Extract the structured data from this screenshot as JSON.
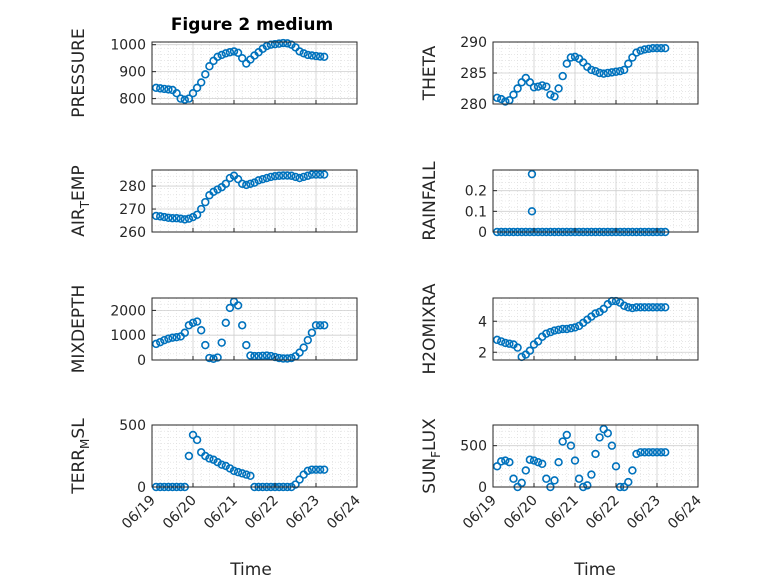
{
  "figure": {
    "title": "Figure 2 medium"
  },
  "chart_data": [
    {
      "type": "scatter",
      "ylabel": "PRESSURE",
      "ylim": [
        780,
        1010
      ],
      "yticks": [
        800,
        900,
        1000
      ],
      "x": [
        0.1,
        0.2,
        0.3,
        0.4,
        0.5,
        0.6,
        0.7,
        0.8,
        0.9,
        1.0,
        1.1,
        1.2,
        1.3,
        1.4,
        1.5,
        1.6,
        1.7,
        1.8,
        1.9,
        2.0,
        2.1,
        2.2,
        2.3,
        2.4,
        2.5,
        2.6,
        2.7,
        2.8,
        2.9,
        3.0,
        3.1,
        3.2,
        3.3,
        3.4,
        3.5,
        3.6,
        3.7,
        3.8,
        3.9,
        4.0,
        4.1,
        4.2
      ],
      "y": [
        840,
        838,
        836,
        834,
        832,
        820,
        800,
        796,
        800,
        820,
        840,
        860,
        890,
        920,
        940,
        955,
        962,
        968,
        972,
        975,
        970,
        950,
        930,
        945,
        960,
        972,
        985,
        995,
        1000,
        1002,
        1004,
        1006,
        1005,
        1000,
        990,
        975,
        968,
        962,
        960,
        958,
        956,
        955
      ]
    },
    {
      "type": "scatter",
      "ylabel": "THETA",
      "ylim": [
        280,
        290
      ],
      "yticks": [
        280,
        285,
        290
      ],
      "x": [
        0.1,
        0.2,
        0.3,
        0.4,
        0.5,
        0.6,
        0.7,
        0.8,
        0.9,
        1.0,
        1.1,
        1.2,
        1.3,
        1.4,
        1.5,
        1.6,
        1.7,
        1.8,
        1.9,
        2.0,
        2.1,
        2.2,
        2.3,
        2.4,
        2.5,
        2.6,
        2.7,
        2.8,
        2.9,
        3.0,
        3.1,
        3.2,
        3.3,
        3.4,
        3.5,
        3.6,
        3.7,
        3.8,
        3.9,
        4.0,
        4.1,
        4.2
      ],
      "y": [
        281,
        280.8,
        280.4,
        280.6,
        281.5,
        282.5,
        283.5,
        284.2,
        283.5,
        282.7,
        282.8,
        283,
        282.8,
        281.5,
        281.2,
        282.5,
        284.5,
        286.5,
        287.5,
        287.6,
        287.3,
        286.7,
        286,
        285.5,
        285.3,
        285,
        284.9,
        285,
        285.1,
        285.2,
        285.3,
        285.5,
        286.5,
        287.5,
        288.3,
        288.6,
        288.8,
        288.9,
        289,
        289,
        289,
        289
      ]
    },
    {
      "type": "scatter",
      "ylabel": "AIR_TEMP",
      "ylim": [
        260,
        287
      ],
      "yticks": [
        260,
        270,
        280
      ],
      "x": [
        0.1,
        0.2,
        0.3,
        0.4,
        0.5,
        0.6,
        0.7,
        0.8,
        0.9,
        1.0,
        1.1,
        1.2,
        1.3,
        1.4,
        1.5,
        1.6,
        1.7,
        1.8,
        1.9,
        2.0,
        2.1,
        2.2,
        2.3,
        2.4,
        2.5,
        2.6,
        2.7,
        2.8,
        2.9,
        3.0,
        3.1,
        3.2,
        3.3,
        3.4,
        3.5,
        3.6,
        3.7,
        3.8,
        3.9,
        4.0,
        4.1,
        4.2
      ],
      "y": [
        267,
        266.8,
        266.5,
        266.2,
        266,
        266,
        265.8,
        265.5,
        265.8,
        266.5,
        267.5,
        270,
        273,
        276,
        277.5,
        278.5,
        279.5,
        281,
        283.5,
        284.5,
        283,
        281,
        280.5,
        281,
        281.5,
        282.5,
        283,
        283.5,
        284,
        284.3,
        284.5,
        284.6,
        284.6,
        284.5,
        284,
        283.5,
        284,
        284.5,
        285,
        285,
        285,
        285
      ]
    },
    {
      "type": "scatter",
      "ylabel": "RAINFALL",
      "ylim": [
        0,
        0.3
      ],
      "yticks": [
        0,
        0.1,
        0.2
      ],
      "x": [
        0.1,
        0.2,
        0.3,
        0.4,
        0.5,
        0.6,
        0.7,
        0.8,
        0.9,
        1.0,
        1.1,
        1.2,
        1.3,
        1.4,
        1.5,
        1.6,
        1.7,
        1.8,
        1.9,
        2.0,
        2.1,
        2.2,
        2.3,
        2.4,
        2.5,
        2.6,
        2.7,
        2.8,
        2.9,
        3.0,
        3.1,
        3.2,
        3.3,
        3.4,
        3.5,
        3.6,
        3.7,
        3.8,
        3.9,
        4.0,
        4.1,
        4.2,
        0.95,
        0.95
      ],
      "y": [
        0,
        0,
        0,
        0,
        0,
        0,
        0,
        0,
        0,
        0,
        0,
        0,
        0,
        0,
        0,
        0,
        0,
        0,
        0,
        0,
        0,
        0,
        0,
        0,
        0,
        0,
        0,
        0,
        0,
        0,
        0,
        0,
        0,
        0,
        0,
        0,
        0,
        0,
        0,
        0,
        0,
        0,
        0.1,
        0.28
      ]
    },
    {
      "type": "scatter",
      "ylabel": "MIXDEPTH",
      "ylim": [
        0,
        2500
      ],
      "yticks": [
        0,
        1000,
        2000
      ],
      "x": [
        0.1,
        0.2,
        0.3,
        0.4,
        0.5,
        0.6,
        0.7,
        0.8,
        0.9,
        1.0,
        1.1,
        1.2,
        1.3,
        1.4,
        1.5,
        1.6,
        1.7,
        1.8,
        1.9,
        2.0,
        2.1,
        2.2,
        2.3,
        2.4,
        2.5,
        2.6,
        2.7,
        2.8,
        2.9,
        3.0,
        3.1,
        3.2,
        3.3,
        3.4,
        3.5,
        3.6,
        3.7,
        3.8,
        3.9,
        4.0,
        4.1,
        4.2
      ],
      "y": [
        650,
        720,
        800,
        860,
        900,
        920,
        950,
        1100,
        1400,
        1500,
        1550,
        1200,
        600,
        80,
        50,
        100,
        700,
        1500,
        2100,
        2350,
        2200,
        1400,
        600,
        180,
        160,
        160,
        170,
        180,
        160,
        120,
        80,
        60,
        60,
        80,
        150,
        300,
        500,
        800,
        1100,
        1400,
        1400,
        1400
      ]
    },
    {
      "type": "scatter",
      "ylabel": "H2OMIXRA",
      "ylim": [
        1.5,
        5.5
      ],
      "yticks": [
        2,
        4
      ],
      "x": [
        0.1,
        0.2,
        0.3,
        0.4,
        0.5,
        0.6,
        0.7,
        0.8,
        0.9,
        1.0,
        1.1,
        1.2,
        1.3,
        1.4,
        1.5,
        1.6,
        1.7,
        1.8,
        1.9,
        2.0,
        2.1,
        2.2,
        2.3,
        2.4,
        2.5,
        2.6,
        2.7,
        2.8,
        2.9,
        3.0,
        3.1,
        3.2,
        3.3,
        3.4,
        3.5,
        3.6,
        3.7,
        3.8,
        3.9,
        4.0,
        4.1,
        4.2
      ],
      "y": [
        2.8,
        2.7,
        2.6,
        2.55,
        2.5,
        2.3,
        1.7,
        1.85,
        2.1,
        2.5,
        2.7,
        3.0,
        3.2,
        3.3,
        3.4,
        3.45,
        3.5,
        3.5,
        3.55,
        3.6,
        3.7,
        3.9,
        4.1,
        4.3,
        4.5,
        4.6,
        4.8,
        5.1,
        5.3,
        5.3,
        5.2,
        5.0,
        4.9,
        4.85,
        4.9,
        4.9,
        4.9,
        4.9,
        4.9,
        4.9,
        4.9,
        4.9
      ]
    },
    {
      "type": "scatter",
      "ylabel": "TERR_MSL",
      "ylim": [
        0,
        500
      ],
      "yticks": [
        0,
        500
      ],
      "x": [
        0.1,
        0.2,
        0.3,
        0.4,
        0.5,
        0.6,
        0.7,
        0.8,
        0.9,
        1.0,
        1.1,
        1.2,
        1.3,
        1.4,
        1.5,
        1.6,
        1.7,
        1.8,
        1.9,
        2.0,
        2.1,
        2.2,
        2.3,
        2.4,
        2.5,
        2.6,
        2.7,
        2.8,
        2.9,
        3.0,
        3.1,
        3.2,
        3.3,
        3.4,
        3.5,
        3.6,
        3.7,
        3.8,
        3.9,
        4.0,
        4.1,
        4.2
      ],
      "y": [
        0,
        0,
        0,
        0,
        0,
        0,
        0,
        0,
        250,
        420,
        380,
        280,
        250,
        230,
        220,
        200,
        180,
        170,
        150,
        130,
        120,
        110,
        100,
        90,
        0,
        0,
        0,
        0,
        0,
        0,
        0,
        0,
        0,
        0,
        20,
        60,
        100,
        130,
        140,
        140,
        140,
        140
      ]
    },
    {
      "type": "scatter",
      "ylabel": "SUN_FLUX",
      "ylim": [
        0,
        750
      ],
      "yticks": [
        0,
        500
      ],
      "x": [
        0.1,
        0.2,
        0.3,
        0.4,
        0.5,
        0.6,
        0.7,
        0.8,
        0.9,
        1.0,
        1.1,
        1.2,
        1.3,
        1.4,
        1.5,
        1.6,
        1.7,
        1.8,
        1.9,
        2.0,
        2.1,
        2.2,
        2.3,
        2.4,
        2.5,
        2.6,
        2.7,
        2.8,
        2.9,
        3.0,
        3.1,
        3.2,
        3.3,
        3.4,
        3.5,
        3.6,
        3.7,
        3.8,
        3.9,
        4.0,
        4.1,
        4.2
      ],
      "y": [
        250,
        310,
        320,
        300,
        100,
        0,
        50,
        200,
        330,
        320,
        300,
        280,
        100,
        0,
        80,
        300,
        550,
        630,
        500,
        320,
        100,
        0,
        20,
        150,
        400,
        600,
        700,
        650,
        500,
        250,
        0,
        0,
        60,
        200,
        400,
        420,
        420,
        420,
        420,
        420,
        420,
        420
      ]
    }
  ],
  "xaxis": {
    "ticklabels": [
      "06/19",
      "06/20",
      "06/21",
      "06/22",
      "06/23",
      "06/24"
    ],
    "label": "Time"
  }
}
